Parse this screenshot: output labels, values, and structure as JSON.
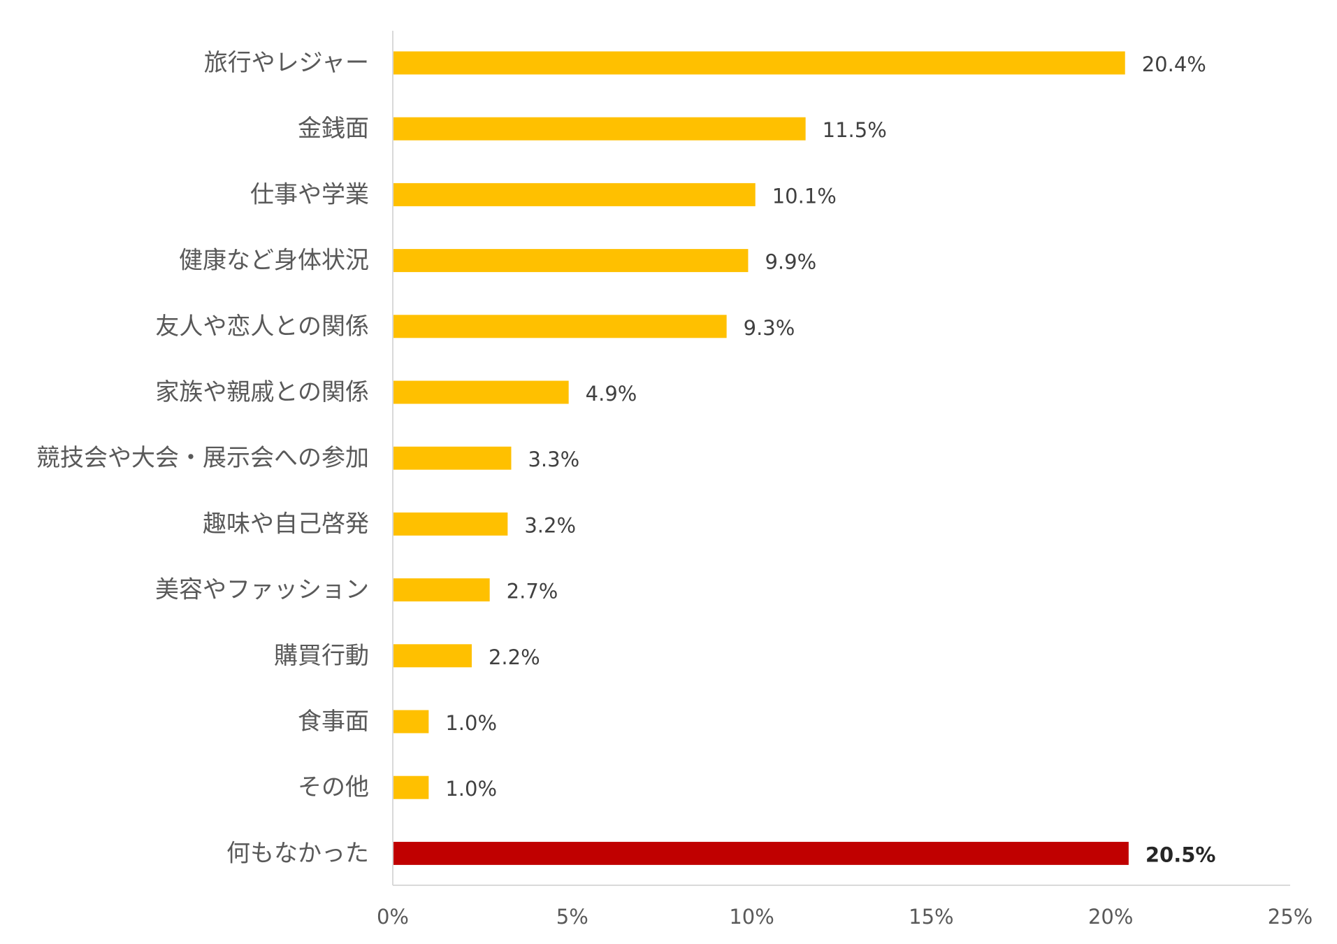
{
  "chart_data": {
    "type": "bar",
    "orientation": "horizontal",
    "title": "",
    "xlabel": "",
    "ylabel": "",
    "xlim": [
      0,
      25
    ],
    "grid": false,
    "legend": "none",
    "categories": [
      "旅行やレジャー",
      "金銭面",
      "仕事や学業",
      "健康など身体状況",
      "友人や恋人との関係",
      "家族や親戚との関係",
      "競技会や大会・展示会への参加",
      "趣味や自己啓発",
      "美容やファッション",
      "購買行動",
      "食事面",
      "その他",
      "何もなかった"
    ],
    "values": [
      20.4,
      11.5,
      10.1,
      9.9,
      9.3,
      4.9,
      3.3,
      3.2,
      2.7,
      2.2,
      1.0,
      1.0,
      20.5
    ],
    "data_labels": [
      "20.4%",
      "11.5%",
      "10.1%",
      "9.9%",
      "9.3%",
      "4.9%",
      "3.3%",
      "3.2%",
      "2.7%",
      "2.2%",
      "1.0%",
      "1.0%",
      "20.5%"
    ],
    "bar_colors": [
      "#FFC000",
      "#FFC000",
      "#FFC000",
      "#FFC000",
      "#FFC000",
      "#FFC000",
      "#FFC000",
      "#FFC000",
      "#FFC000",
      "#FFC000",
      "#FFC000",
      "#FFC000",
      "#C00000"
    ],
    "emphasized_labels": [
      false,
      false,
      false,
      false,
      false,
      false,
      false,
      false,
      false,
      false,
      false,
      false,
      true
    ],
    "x_ticks": [
      0,
      5,
      10,
      15,
      20,
      25
    ],
    "x_tick_labels": [
      "0%",
      "5%",
      "10%",
      "15%",
      "20%",
      "25%"
    ],
    "axis_color": "#D9D9D9"
  }
}
